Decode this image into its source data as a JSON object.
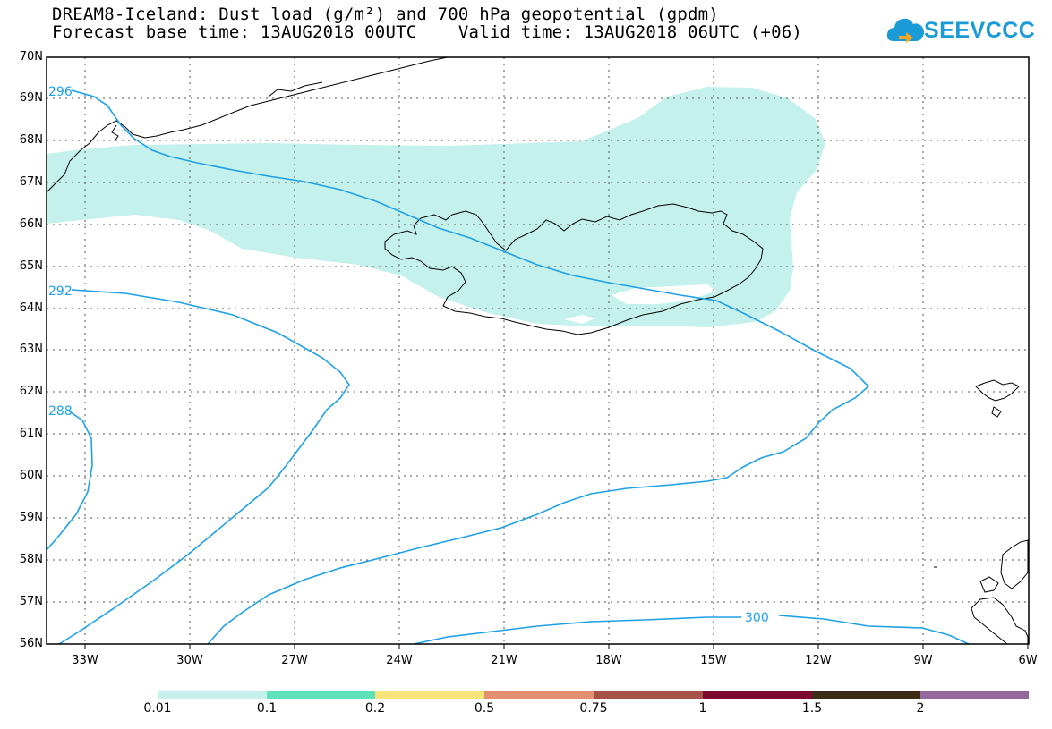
{
  "title": {
    "line1": "DREAM8-Iceland: Dust load (g/m²) and 700 hPa geopotential (gpdm)",
    "line2": "Forecast base time: 13AUG2018 00UTC    Valid time: 13AUG2018 06UTC (+06)"
  },
  "logo": {
    "text": "SEEVCCC",
    "color": "#1a9bd7",
    "icon": "cloud-icon"
  },
  "map": {
    "lon_range": [
      -34,
      -6
    ],
    "lat_range": [
      56,
      70
    ],
    "lon_ticks": [
      "33W",
      "30W",
      "27W",
      "24W",
      "21W",
      "18W",
      "15W",
      "12W",
      "9W",
      "6W"
    ],
    "lat_ticks": [
      "56N",
      "57N",
      "58N",
      "59N",
      "60N",
      "61N",
      "62N",
      "63N",
      "64N",
      "65N",
      "66N",
      "67N",
      "68N",
      "69N",
      "70N"
    ],
    "grid": true,
    "contour_color": "#1ea0e8",
    "contour_labels": [
      {
        "text": "296",
        "lon": -33.7,
        "lat": 69.3
      },
      {
        "text": "292",
        "lon": -33.8,
        "lat": 64.5
      },
      {
        "text": "288",
        "lon": -33.8,
        "lat": 61.6
      },
      {
        "text": "300",
        "lon": -13.3,
        "lat": 56.7
      }
    ],
    "dust_fill_color": "#c4f1eb"
  },
  "colorbar": {
    "swatches": [
      "#c4f1eb",
      "#5ee0b8",
      "#f6e37a",
      "#e39070",
      "#a65245",
      "#7d0a2e",
      "#3a2a16",
      "#94689f"
    ],
    "labels": [
      "0.01",
      "0.1",
      "0.2",
      "0.5",
      "0.75",
      "1",
      "1.5",
      "2"
    ]
  }
}
